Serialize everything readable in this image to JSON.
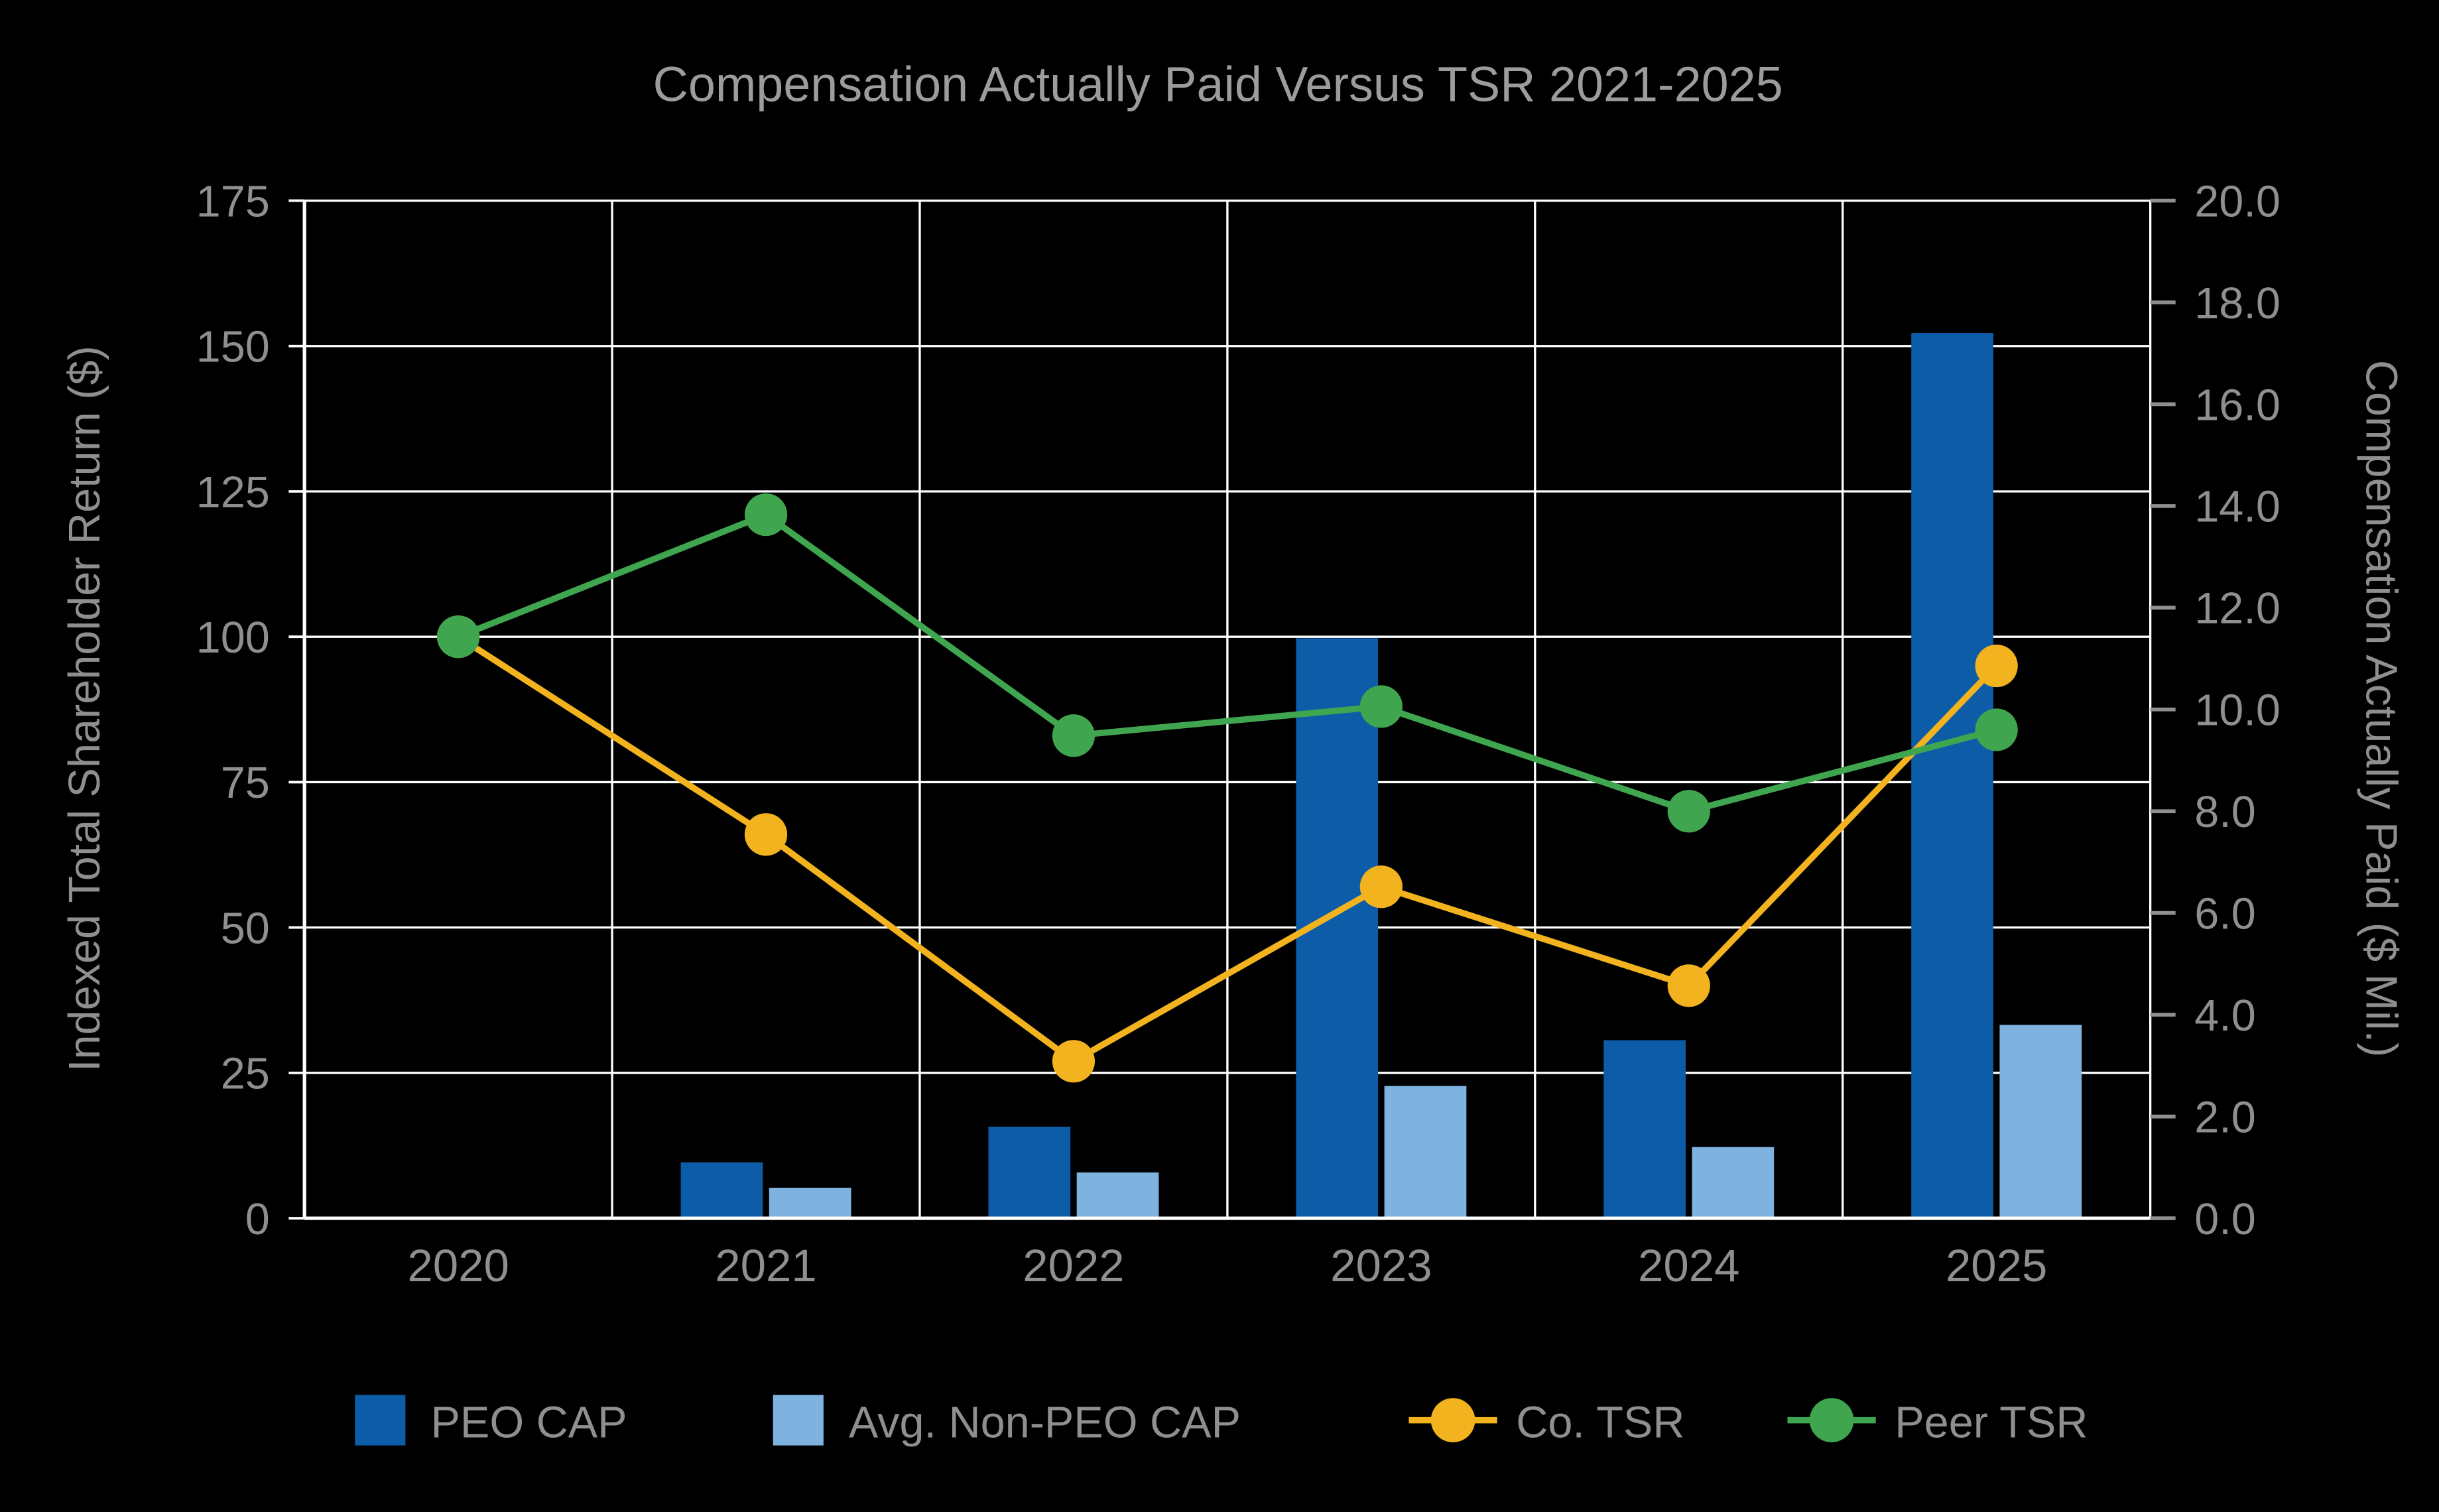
{
  "title": "Compensation Actually Paid Versus TSR 2021-2025",
  "chart_data": {
    "type": "bar",
    "subtype": "combo-bar-line-dual-axis",
    "categories": [
      "2020",
      "2021",
      "2022",
      "2023",
      "2024",
      "2025"
    ],
    "bar_series": [
      {
        "name": "PEO CAP",
        "axis": "right",
        "color": "#0d5ca8",
        "values": [
          0,
          1.1,
          1.8,
          11.4,
          3.5,
          17.4
        ]
      },
      {
        "name": "Avg. Non-PEO CAP",
        "axis": "right",
        "color": "#7fb3df",
        "values": [
          0,
          0.6,
          0.9,
          2.6,
          1.4,
          3.8
        ]
      }
    ],
    "line_series": [
      {
        "name": "Co. TSR",
        "axis": "left",
        "color": "#f2b31e",
        "values": [
          100,
          66,
          27,
          57,
          40,
          95
        ]
      },
      {
        "name": "Peer TSR",
        "axis": "left",
        "color": "#3fa64f",
        "values": [
          100,
          121,
          83,
          88,
          70,
          84
        ]
      }
    ],
    "left_axis": {
      "label": "Indexed Total Shareholder Return ($)",
      "min": 0,
      "max": 175,
      "step": 25,
      "tick_labels": [
        "0",
        "25",
        "50",
        "75",
        "100",
        "125",
        "150",
        "175"
      ]
    },
    "right_axis": {
      "label": "Compensation Actually Paid ($ Mil.)",
      "min": 0,
      "max": 20,
      "step": 2,
      "tick_labels": [
        "0.0",
        "2.0",
        "4.0",
        "6.0",
        "8.0",
        "10.0",
        "12.0",
        "14.0",
        "16.0",
        "18.0",
        "20.0"
      ]
    },
    "grid": true,
    "legend_position": "bottom",
    "colors": {
      "background": "#000000",
      "gridline": "#ffffff",
      "axis_line": "#ffffff",
      "text": "#8f8f8f",
      "title_text": "#9c9c9c"
    }
  }
}
